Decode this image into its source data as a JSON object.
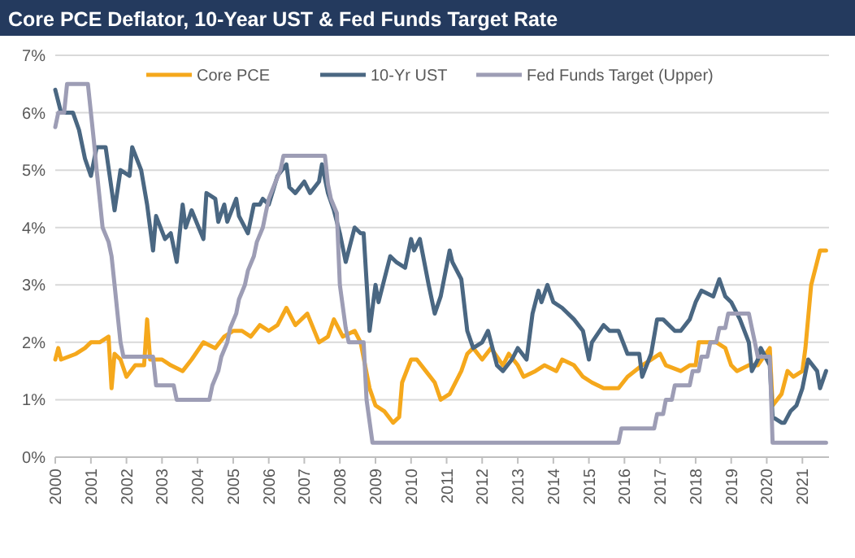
{
  "chart_data": {
    "type": "line",
    "title": "Core PCE Deflator, 10-Year UST & Fed Funds Target Rate",
    "xlim": [
      "2000-01",
      "2021-10"
    ],
    "xticks": [
      "2000",
      "2001",
      "2002",
      "2003",
      "2004",
      "2005",
      "2006",
      "2007",
      "2008",
      "2009",
      "2010",
      "2011",
      "2012",
      "2013",
      "2014",
      "2015",
      "2016",
      "2017",
      "2018",
      "2019",
      "2020",
      "2021"
    ],
    "ylim": [
      0,
      7
    ],
    "yticks": [
      {
        "value": 0,
        "label": "0%"
      },
      {
        "value": 1,
        "label": "1%"
      },
      {
        "value": 2,
        "label": "2%"
      },
      {
        "value": 3,
        "label": "3%"
      },
      {
        "value": 4,
        "label": "4%"
      },
      {
        "value": 5,
        "label": "5%"
      },
      {
        "value": 6,
        "label": "6%"
      },
      {
        "value": 7,
        "label": "7%"
      }
    ],
    "grid": "y",
    "legend": "top",
    "line_style": "solid",
    "series": [
      {
        "name": "Core PCE",
        "color": "#f5a81c",
        "x": [
          "2000-01",
          "2000-02",
          "2000-03",
          "2000-08",
          "2000-11",
          "2001-01",
          "2001-04",
          "2001-07",
          "2001-08",
          "2001-09",
          "2001-11",
          "2002-01",
          "2002-04",
          "2002-07",
          "2002-08",
          "2002-09",
          "2003-01",
          "2003-04",
          "2003-08",
          "2003-11",
          "2004-03",
          "2004-07",
          "2004-10",
          "2005-01",
          "2005-04",
          "2005-07",
          "2005-10",
          "2006-01",
          "2006-04",
          "2006-07",
          "2006-10",
          "2007-02",
          "2007-06",
          "2007-09",
          "2007-11",
          "2008-02",
          "2008-06",
          "2008-08",
          "2008-11",
          "2009-01",
          "2009-04",
          "2009-07",
          "2009-09",
          "2009-10",
          "2010-01",
          "2010-03",
          "2010-06",
          "2010-09",
          "2010-11",
          "2011-02",
          "2011-06",
          "2011-08",
          "2011-10",
          "2012-01",
          "2012-04",
          "2012-08",
          "2012-10",
          "2013-01",
          "2013-03",
          "2013-07",
          "2013-10",
          "2014-02",
          "2014-04",
          "2014-08",
          "2014-11",
          "2015-02",
          "2015-06",
          "2015-09",
          "2015-11",
          "2016-02",
          "2016-07",
          "2016-10",
          "2017-01",
          "2017-03",
          "2017-08",
          "2017-11",
          "2018-01",
          "2018-02",
          "2018-04",
          "2018-08",
          "2018-11",
          "2019-01",
          "2019-03",
          "2019-07",
          "2019-10",
          "2020-02",
          "2020-03",
          "2020-06",
          "2020-08",
          "2020-10",
          "2021-01",
          "2021-02",
          "2021-04",
          "2021-07",
          "2021-09"
        ],
        "values": [
          1.7,
          1.9,
          1.7,
          1.8,
          1.9,
          2.0,
          2.0,
          2.1,
          1.2,
          1.8,
          1.7,
          1.4,
          1.6,
          1.6,
          2.4,
          1.7,
          1.7,
          1.6,
          1.5,
          1.7,
          2.0,
          1.9,
          2.1,
          2.2,
          2.2,
          2.1,
          2.3,
          2.2,
          2.3,
          2.6,
          2.3,
          2.5,
          2.0,
          2.1,
          2.4,
          2.1,
          2.2,
          2.0,
          1.2,
          0.9,
          0.8,
          0.6,
          0.7,
          1.3,
          1.7,
          1.7,
          1.5,
          1.3,
          1.0,
          1.1,
          1.5,
          1.8,
          1.9,
          1.7,
          1.9,
          1.6,
          1.8,
          1.6,
          1.4,
          1.5,
          1.6,
          1.5,
          1.7,
          1.6,
          1.4,
          1.3,
          1.2,
          1.2,
          1.2,
          1.4,
          1.6,
          1.7,
          1.8,
          1.6,
          1.5,
          1.6,
          1.6,
          2.0,
          2.0,
          2.0,
          1.9,
          1.6,
          1.5,
          1.6,
          1.6,
          1.9,
          0.9,
          1.1,
          1.5,
          1.4,
          1.5,
          1.9,
          3.0,
          3.6,
          3.6
        ]
      },
      {
        "name": "10-Yr UST",
        "color": "#4a6782",
        "x": [
          "2000-01",
          "2000-03",
          "2000-07",
          "2000-09",
          "2000-11",
          "2001-01",
          "2001-03",
          "2001-06",
          "2001-09",
          "2001-11",
          "2002-02",
          "2002-03",
          "2002-06",
          "2002-08",
          "2002-10",
          "2002-11",
          "2003-02",
          "2003-04",
          "2003-06",
          "2003-08",
          "2003-09",
          "2003-11",
          "2004-03",
          "2004-04",
          "2004-07",
          "2004-08",
          "2004-10",
          "2004-11",
          "2005-02",
          "2005-03",
          "2005-06",
          "2005-08",
          "2005-10",
          "2005-11",
          "2006-01",
          "2006-04",
          "2006-07",
          "2006-08",
          "2006-10",
          "2007-01",
          "2007-03",
          "2007-06",
          "2007-07",
          "2007-09",
          "2007-11",
          "2008-01",
          "2008-03",
          "2008-06",
          "2008-08",
          "2008-09",
          "2008-11",
          "2009-01",
          "2009-02",
          "2009-06",
          "2009-08",
          "2009-11",
          "2010-01",
          "2010-02",
          "2010-04",
          "2010-07",
          "2010-09",
          "2010-11",
          "2011-02",
          "2011-03",
          "2011-06",
          "2011-08",
          "2011-10",
          "2012-01",
          "2012-03",
          "2012-06",
          "2012-08",
          "2012-11",
          "2013-01",
          "2013-04",
          "2013-06",
          "2013-08",
          "2013-09",
          "2013-11",
          "2014-01",
          "2014-04",
          "2014-08",
          "2014-11",
          "2015-01",
          "2015-02",
          "2015-06",
          "2015-08",
          "2015-11",
          "2016-02",
          "2016-06",
          "2016-07",
          "2016-10",
          "2016-12",
          "2017-02",
          "2017-06",
          "2017-08",
          "2017-11",
          "2018-01",
          "2018-03",
          "2018-07",
          "2018-09",
          "2018-11",
          "2019-01",
          "2019-04",
          "2019-07",
          "2019-08",
          "2019-10",
          "2019-11",
          "2020-02",
          "2020-03",
          "2020-06",
          "2020-07",
          "2020-09",
          "2020-11",
          "2021-01",
          "2021-03",
          "2021-06",
          "2021-07",
          "2021-09"
        ],
        "values": [
          6.4,
          6.0,
          6.0,
          5.7,
          5.2,
          4.9,
          5.4,
          5.4,
          4.3,
          5.0,
          4.9,
          5.4,
          5.0,
          4.4,
          3.6,
          4.2,
          3.8,
          3.9,
          3.4,
          4.4,
          4.0,
          4.3,
          3.8,
          4.6,
          4.5,
          4.1,
          4.4,
          4.1,
          4.5,
          4.2,
          3.9,
          4.4,
          4.4,
          4.5,
          4.4,
          4.9,
          5.1,
          4.7,
          4.6,
          4.8,
          4.6,
          4.8,
          5.1,
          4.6,
          4.3,
          3.9,
          3.4,
          4.0,
          3.9,
          3.9,
          2.2,
          3.0,
          2.7,
          3.5,
          3.4,
          3.3,
          3.8,
          3.6,
          3.8,
          3.0,
          2.5,
          2.8,
          3.6,
          3.4,
          3.1,
          2.2,
          1.9,
          2.0,
          2.2,
          1.6,
          1.5,
          1.7,
          1.9,
          1.7,
          2.5,
          2.9,
          2.7,
          3.0,
          2.7,
          2.6,
          2.4,
          2.2,
          1.7,
          2.0,
          2.3,
          2.2,
          2.2,
          1.8,
          1.8,
          1.4,
          1.8,
          2.4,
          2.4,
          2.2,
          2.2,
          2.4,
          2.7,
          2.9,
          2.8,
          3.1,
          2.8,
          2.7,
          2.4,
          2.0,
          1.5,
          1.7,
          1.9,
          1.6,
          0.7,
          0.6,
          0.6,
          0.8,
          0.9,
          1.2,
          1.7,
          1.5,
          1.2,
          1.5
        ]
      },
      {
        "name": "Fed Funds Target (Upper)",
        "color": "#9d9db5",
        "x": [
          "2000-01",
          "2000-02",
          "2000-04",
          "2000-05",
          "2000-12",
          "2001-01",
          "2001-02",
          "2001-03",
          "2001-04",
          "2001-05",
          "2001-07",
          "2001-08",
          "2001-09",
          "2001-10",
          "2001-11",
          "2001-12",
          "2002-10",
          "2002-11",
          "2003-05",
          "2003-06",
          "2004-05",
          "2004-06",
          "2004-08",
          "2004-09",
          "2004-11",
          "2004-12",
          "2005-02",
          "2005-03",
          "2005-05",
          "2005-06",
          "2005-08",
          "2005-09",
          "2005-11",
          "2005-12",
          "2006-01",
          "2006-03",
          "2006-05",
          "2006-06",
          "2007-08",
          "2007-09",
          "2007-10",
          "2007-12",
          "2008-01",
          "2008-03",
          "2008-04",
          "2008-09",
          "2008-10",
          "2008-12",
          "2015-11",
          "2015-12",
          "2016-11",
          "2016-12",
          "2017-02",
          "2017-03",
          "2017-05",
          "2017-06",
          "2017-11",
          "2017-12",
          "2018-02",
          "2018-03",
          "2018-05",
          "2018-06",
          "2018-08",
          "2018-09",
          "2018-11",
          "2018-12",
          "2019-07",
          "2019-08",
          "2019-09",
          "2019-10",
          "2020-02",
          "2020-03",
          "2021-09"
        ],
        "values": [
          5.75,
          6.0,
          6.0,
          6.5,
          6.5,
          6.0,
          5.5,
          5.0,
          4.5,
          4.0,
          3.75,
          3.5,
          3.0,
          2.5,
          2.0,
          1.75,
          1.75,
          1.25,
          1.25,
          1.0,
          1.0,
          1.25,
          1.5,
          1.75,
          2.0,
          2.25,
          2.5,
          2.75,
          3.0,
          3.25,
          3.5,
          3.75,
          4.0,
          4.25,
          4.5,
          4.75,
          5.0,
          5.25,
          5.25,
          4.75,
          4.5,
          4.25,
          3.0,
          2.25,
          2.0,
          2.0,
          1.0,
          0.25,
          0.25,
          0.5,
          0.5,
          0.75,
          0.75,
          1.0,
          1.0,
          1.25,
          1.25,
          1.5,
          1.5,
          1.75,
          1.75,
          2.0,
          2.0,
          2.25,
          2.25,
          2.5,
          2.5,
          2.25,
          2.0,
          1.75,
          1.75,
          0.25,
          0.25
        ]
      }
    ]
  }
}
